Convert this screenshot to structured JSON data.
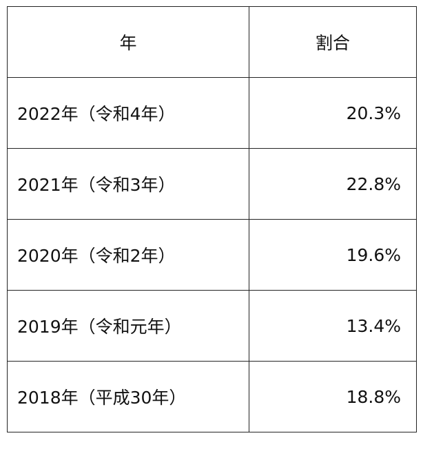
{
  "table": {
    "headers": {
      "year": "年",
      "ratio": "割合"
    },
    "rows": [
      {
        "year": "2022年（令和4年）",
        "ratio": "20.3%"
      },
      {
        "year": "2021年（令和3年）",
        "ratio": "22.8%"
      },
      {
        "year": "2020年（令和2年）",
        "ratio": "19.6%"
      },
      {
        "year": "2019年（令和元年）",
        "ratio": "13.4%"
      },
      {
        "year": "2018年（平成30年）",
        "ratio": "18.8%"
      }
    ]
  }
}
